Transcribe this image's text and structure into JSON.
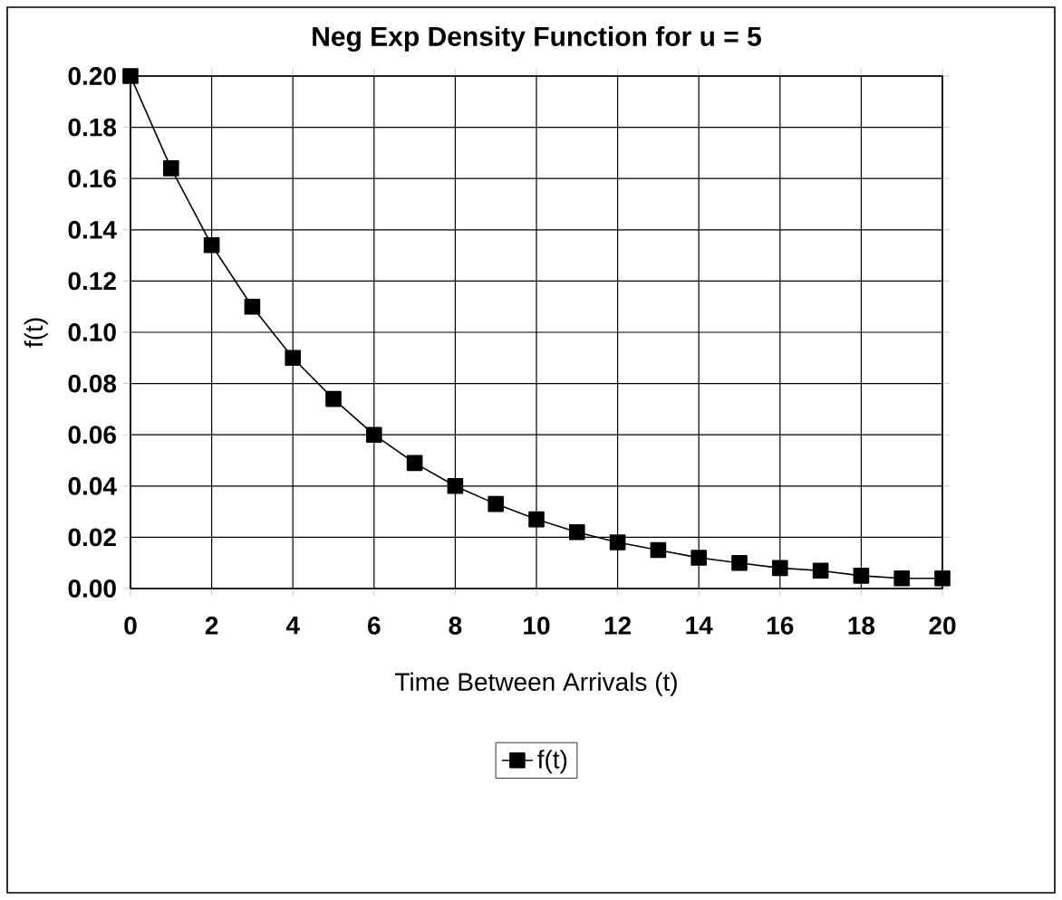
{
  "chart_data": {
    "type": "line",
    "title": "Neg Exp Density Function for u = 5",
    "xlabel": "Time Between Arrivals (t)",
    "ylabel": "f(t)",
    "x": [
      0,
      1,
      2,
      3,
      4,
      5,
      6,
      7,
      8,
      9,
      10,
      11,
      12,
      13,
      14,
      15,
      16,
      17,
      18,
      19,
      20
    ],
    "series": [
      {
        "name": "f(t)",
        "color": "#000000",
        "values": [
          0.2,
          0.164,
          0.134,
          0.11,
          0.09,
          0.074,
          0.06,
          0.049,
          0.04,
          0.033,
          0.027,
          0.022,
          0.018,
          0.015,
          0.012,
          0.01,
          0.008,
          0.007,
          0.005,
          0.004,
          0.004
        ]
      }
    ],
    "xlim": [
      0,
      20
    ],
    "xticks": [
      0,
      2,
      4,
      6,
      8,
      10,
      12,
      14,
      16,
      18,
      20
    ],
    "ylim": [
      0,
      0.2
    ],
    "yticks": [
      {
        "value": 0,
        "label": "0.00"
      },
      {
        "value": 0.02,
        "label": "0.02"
      },
      {
        "value": 0.04,
        "label": "0.04"
      },
      {
        "value": 0.06,
        "label": "0.06"
      },
      {
        "value": 0.08,
        "label": "0.08"
      },
      {
        "value": 0.1,
        "label": "0.10"
      },
      {
        "value": 0.12,
        "label": "0.12"
      },
      {
        "value": 0.14,
        "label": "0.14"
      },
      {
        "value": 0.16,
        "label": "0.16"
      },
      {
        "value": 0.18,
        "label": "0.18"
      },
      {
        "value": 0.2,
        "label": "0.20"
      }
    ],
    "grid": true,
    "legend": "bottom",
    "marker": "square",
    "line_style": "solid"
  }
}
